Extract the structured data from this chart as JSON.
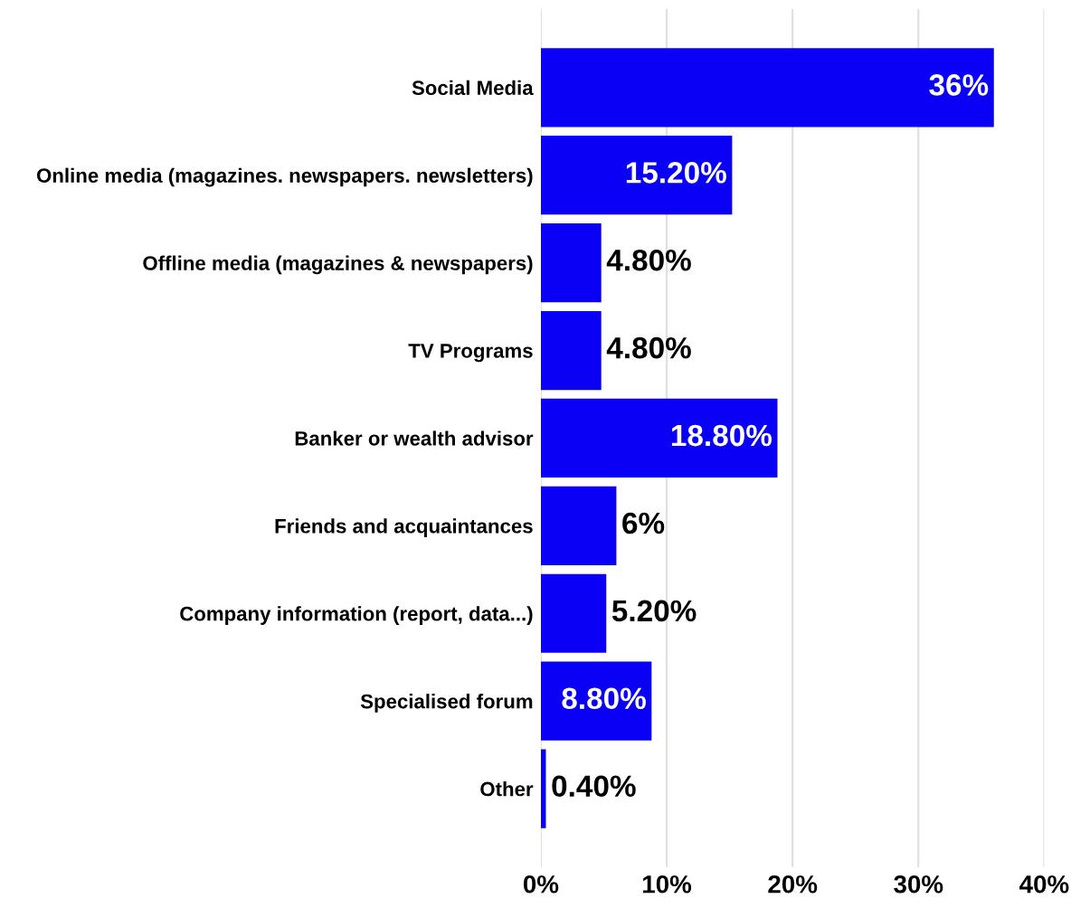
{
  "chart_data": {
    "type": "bar",
    "orientation": "horizontal",
    "categories": [
      "Social Media",
      "Online media (magazines. newspapers. newsletters)",
      "Offline media (magazines & newspapers)",
      "TV Programs",
      "Banker or wealth advisor",
      "Friends and acquaintances",
      "Company information (report, data...)",
      "Specialised forum",
      "Other"
    ],
    "values": [
      36,
      15.2,
      4.8,
      4.8,
      18.8,
      6,
      5.2,
      8.8,
      0.4
    ],
    "value_labels": [
      "36%",
      "15.20%",
      "4.80%",
      "4.80%",
      "18.80%",
      "6%",
      "5.20%",
      "8.80%",
      "0.40%"
    ],
    "color": "#0a00f5",
    "xlim": [
      0,
      40
    ],
    "xticks": [
      {
        "value": 0,
        "label": "0%"
      },
      {
        "value": 10,
        "label": "10%"
      },
      {
        "value": 20,
        "label": "20%"
      },
      {
        "value": 30,
        "label": "30%"
      },
      {
        "value": 40,
        "label": "40%"
      }
    ],
    "grid": "x"
  }
}
